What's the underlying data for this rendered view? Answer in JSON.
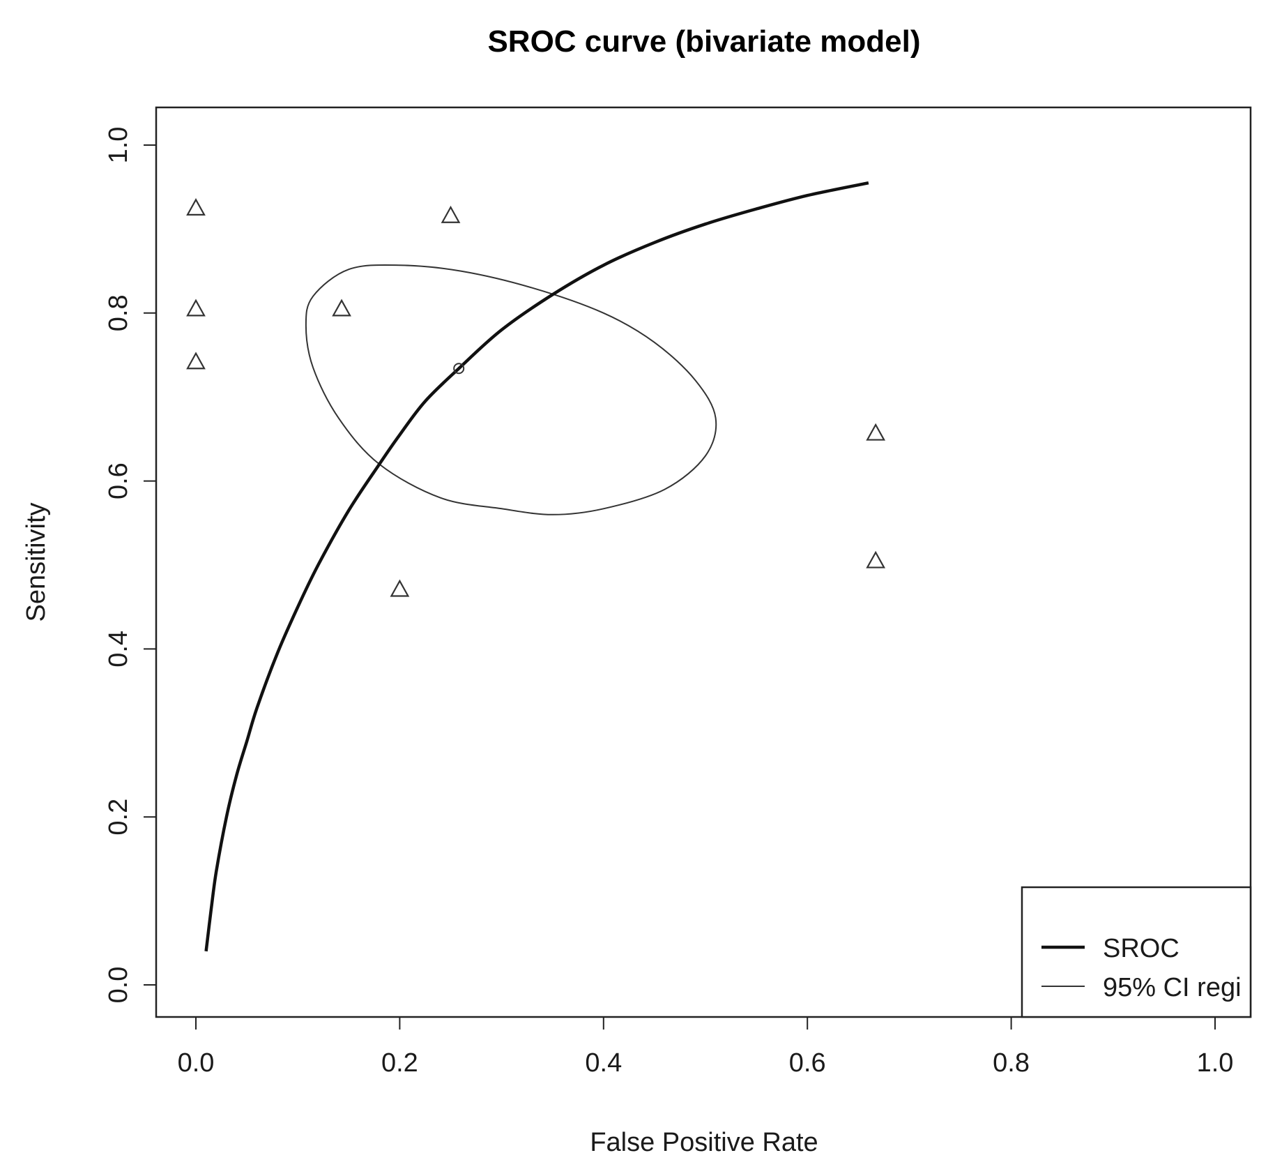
{
  "chart_data": {
    "type": "scatter",
    "title": "SROC curve (bivariate model)",
    "xlabel": "False Positive Rate",
    "ylabel": "Sensitivity",
    "xlim": [
      0.0,
      1.0
    ],
    "ylim": [
      0.0,
      1.0
    ],
    "x_ticks": [
      0.0,
      0.2,
      0.4,
      0.6,
      0.8,
      1.0
    ],
    "x_tick_labels": [
      "0.0",
      "0.2",
      "0.4",
      "0.6",
      "0.8",
      "1.0"
    ],
    "y_ticks": [
      0.0,
      0.2,
      0.4,
      0.6,
      0.8,
      1.0
    ],
    "y_tick_labels": [
      "0.0",
      "0.2",
      "0.4",
      "0.6",
      "0.8",
      "1.0"
    ],
    "grid": false,
    "studies": [
      {
        "x": 0.0,
        "y": 0.925
      },
      {
        "x": 0.0,
        "y": 0.805
      },
      {
        "x": 0.0,
        "y": 0.742
      },
      {
        "x": 0.143,
        "y": 0.805
      },
      {
        "x": 0.2,
        "y": 0.471
      },
      {
        "x": 0.25,
        "y": 0.916
      },
      {
        "x": 0.667,
        "y": 0.657
      },
      {
        "x": 0.667,
        "y": 0.505
      }
    ],
    "summary_point": {
      "x": 0.258,
      "y": 0.734
    },
    "sroc_curve": [
      [
        0.01,
        0.04
      ],
      [
        0.015,
        0.09
      ],
      [
        0.02,
        0.135
      ],
      [
        0.03,
        0.2
      ],
      [
        0.04,
        0.25
      ],
      [
        0.05,
        0.29
      ],
      [
        0.06,
        0.33
      ],
      [
        0.08,
        0.395
      ],
      [
        0.1,
        0.45
      ],
      [
        0.12,
        0.5
      ],
      [
        0.15,
        0.565
      ],
      [
        0.18,
        0.62
      ],
      [
        0.2,
        0.655
      ],
      [
        0.225,
        0.695
      ],
      [
        0.258,
        0.734
      ],
      [
        0.3,
        0.78
      ],
      [
        0.35,
        0.822
      ],
      [
        0.4,
        0.857
      ],
      [
        0.45,
        0.884
      ],
      [
        0.5,
        0.906
      ],
      [
        0.55,
        0.924
      ],
      [
        0.6,
        0.94
      ],
      [
        0.66,
        0.955
      ]
    ],
    "ci_region": [
      [
        0.108,
        0.785
      ],
      [
        0.115,
        0.82
      ],
      [
        0.15,
        0.852
      ],
      [
        0.2,
        0.857
      ],
      [
        0.26,
        0.85
      ],
      [
        0.33,
        0.83
      ],
      [
        0.4,
        0.8
      ],
      [
        0.45,
        0.765
      ],
      [
        0.49,
        0.72
      ],
      [
        0.51,
        0.675
      ],
      [
        0.5,
        0.63
      ],
      [
        0.46,
        0.59
      ],
      [
        0.4,
        0.567
      ],
      [
        0.35,
        0.56
      ],
      [
        0.3,
        0.567
      ],
      [
        0.24,
        0.58
      ],
      [
        0.18,
        0.62
      ],
      [
        0.14,
        0.675
      ],
      [
        0.115,
        0.735
      ],
      [
        0.108,
        0.785
      ]
    ],
    "legend": {
      "position": "bottom-right",
      "entries": [
        {
          "label": "SROC",
          "style": "thick-line"
        },
        {
          "label": "95% CI regi",
          "style": "thin-line"
        }
      ]
    },
    "colors": {
      "line": "#111111",
      "marker": "#333333",
      "frame": "#222222"
    }
  }
}
